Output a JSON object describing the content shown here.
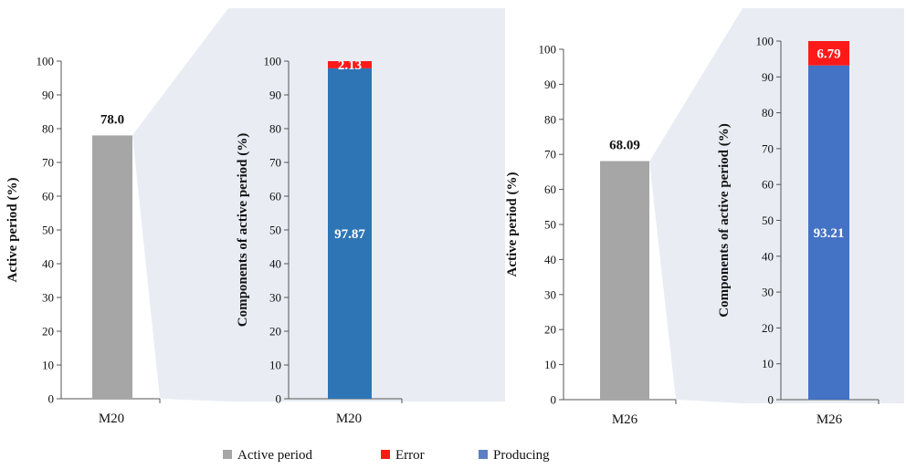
{
  "chart_data": [
    {
      "type": "bar",
      "categories": [
        "M20"
      ],
      "values": [
        78.0
      ],
      "data_labels": [
        "78.0"
      ],
      "ylabel": "Active period (%)",
      "ylim": [
        0,
        100
      ],
      "yticks": [
        0,
        10,
        20,
        30,
        40,
        50,
        60,
        70,
        80,
        90,
        100
      ],
      "color": "#A6A6A6"
    },
    {
      "type": "bar",
      "stacked": true,
      "categories": [
        "M20"
      ],
      "series": [
        {
          "name": "Producing",
          "values": [
            97.87
          ],
          "label": "97.87",
          "color": "#2E75B6"
        },
        {
          "name": "Error",
          "values": [
            2.13
          ],
          "label": "2.13",
          "color": "#FF1A1A"
        }
      ],
      "ylabel": "Components of active period (%)",
      "ylim": [
        0,
        100
      ],
      "yticks": [
        0,
        10,
        20,
        30,
        40,
        50,
        60,
        70,
        80,
        90,
        100
      ]
    },
    {
      "type": "bar",
      "categories": [
        "M26"
      ],
      "values": [
        68.09
      ],
      "data_labels": [
        "68.09"
      ],
      "ylabel": "Active period (%)",
      "ylim": [
        0,
        100
      ],
      "yticks": [
        0,
        10,
        20,
        30,
        40,
        50,
        60,
        70,
        80,
        90,
        100
      ],
      "color": "#A6A6A6"
    },
    {
      "type": "bar",
      "stacked": true,
      "categories": [
        "M26"
      ],
      "series": [
        {
          "name": "Producing",
          "values": [
            93.21
          ],
          "label": "93.21",
          "color": "#4472C4"
        },
        {
          "name": "Error",
          "values": [
            6.79
          ],
          "label": "6.79",
          "color": "#FF1A1A"
        }
      ],
      "ylabel": "Components of active period (%)",
      "ylim": [
        0,
        100
      ],
      "yticks": [
        0,
        10,
        20,
        30,
        40,
        50,
        60,
        70,
        80,
        90,
        100
      ]
    }
  ],
  "legend": {
    "placement": "bottom",
    "items": [
      {
        "label": "Active period",
        "color": "#A6A6A6"
      },
      {
        "label": "Error",
        "color": "#FF1A1A"
      },
      {
        "label": "Producing",
        "color": "#5B7FC4"
      }
    ]
  },
  "theme": {
    "panel_color": "#E9EDF3",
    "axis_color": "#555555"
  }
}
